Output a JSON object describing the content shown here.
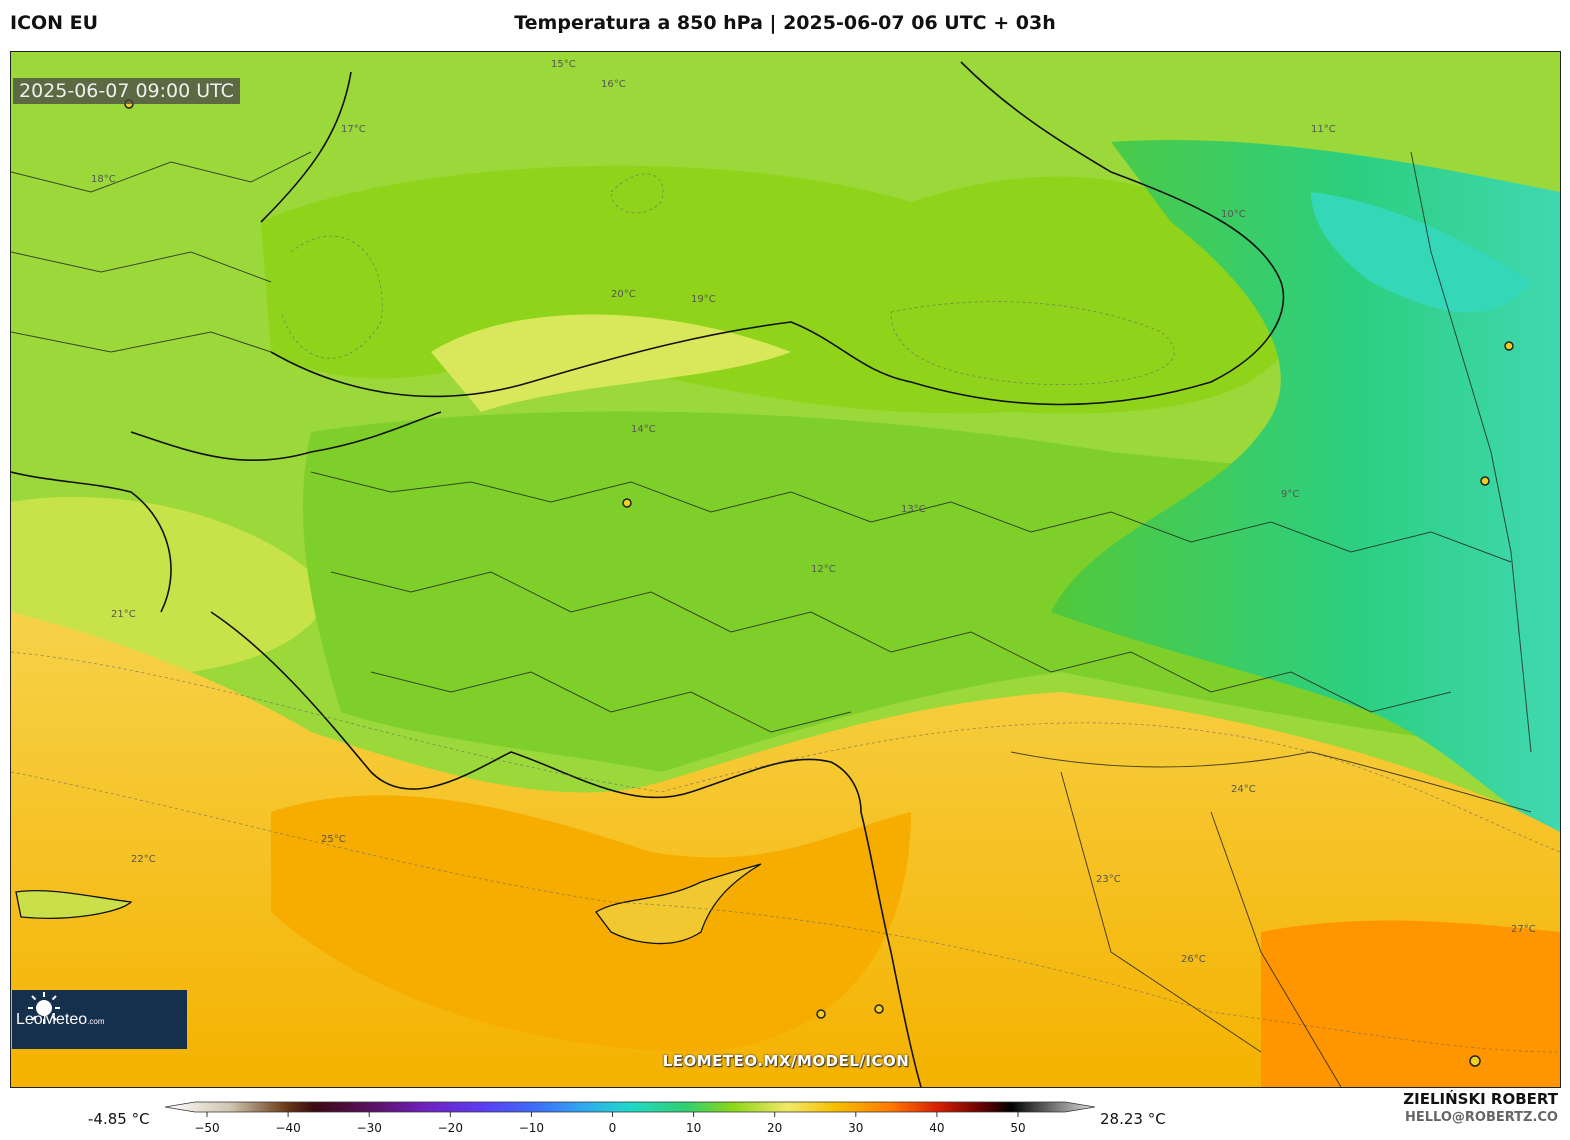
{
  "header": {
    "model": "ICON EU",
    "title": "Temperatura a 850 hPa | 2025-06-07 06 UTC + 03h"
  },
  "map": {
    "valid_time": "2025-06-07 09:00 UTC",
    "watermark": "LEOMETEO.MX/MODEL/ICON",
    "logo_name": "LeoMeteo",
    "logo_suffix": ".com",
    "contour_labels": [
      "15°C",
      "16°C",
      "17°C",
      "18°C",
      "19°C",
      "20°C",
      "21°C",
      "22°C",
      "23°C",
      "24°C",
      "25°C",
      "14°C",
      "13°C",
      "12°C",
      "11°C",
      "10°C",
      "9°C",
      "26°C",
      "27°C"
    ]
  },
  "scale": {
    "min_value": "-4.85 °C",
    "max_value": "28.23 °C",
    "ticks": [
      "-50",
      "-40",
      "-30",
      "-20",
      "-10",
      "0",
      "10",
      "20",
      "30",
      "40",
      "50"
    ]
  },
  "credit": {
    "author": "ZIELIŃSKI ROBERT",
    "contact": "HELLO@ROBERTZ.CO"
  },
  "colors": {
    "ocean_warm": "#f5b400",
    "land_green": "#8ed21c",
    "cold_teal": "#3cd49c",
    "hot_orange": "#ff8c00",
    "yellow": "#f3e46a"
  }
}
